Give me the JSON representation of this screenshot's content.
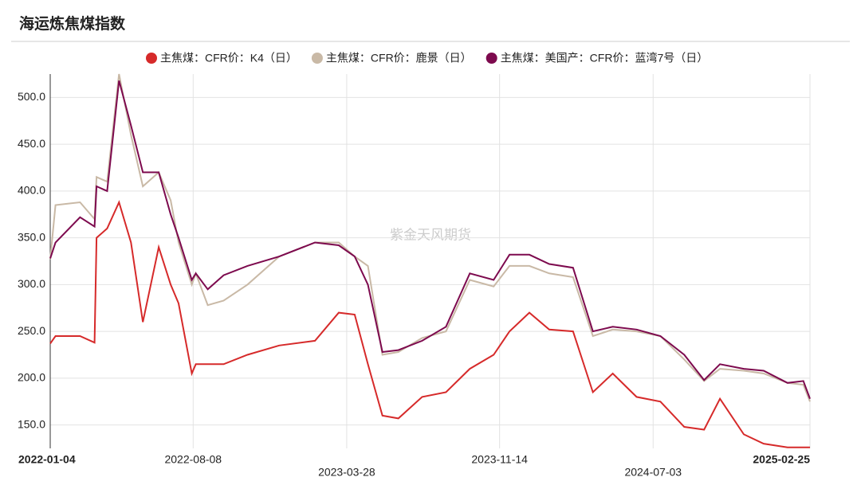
{
  "chart_data": {
    "type": "line",
    "title": "海运炼焦煤指数",
    "watermark": "紫金天风期货",
    "x": [
      "2022-01-04",
      "2022-01-12",
      "2022-02-18",
      "2022-03-12",
      "2022-03-15",
      "2022-03-31",
      "2022-04-18",
      "2022-05-06",
      "2022-05-24",
      "2022-06-17",
      "2022-07-05",
      "2022-07-17",
      "2022-08-06",
      "2022-08-12",
      "2022-08-30",
      "2022-09-23",
      "2022-10-29",
      "2022-12-16",
      "2023-02-08",
      "2023-03-16",
      "2023-04-09",
      "2023-04-29",
      "2023-05-21",
      "2023-06-14",
      "2023-07-20",
      "2023-08-25",
      "2023-09-30",
      "2023-11-05",
      "2023-11-29",
      "2023-12-29",
      "2024-01-28",
      "2024-03-04",
      "2024-04-03",
      "2024-05-03",
      "2024-06-08",
      "2024-07-14",
      "2024-08-19",
      "2024-09-18",
      "2024-10-12",
      "2024-11-17",
      "2024-12-17",
      "2025-01-22",
      "2025-02-15",
      "2025-02-25"
    ],
    "series": [
      {
        "name": "主焦煤：CFR价：K4（日）",
        "color": "#d62a2a",
        "values": [
          237,
          245,
          245,
          238,
          350,
          360,
          388,
          345,
          260,
          340,
          300,
          280,
          205,
          215,
          215,
          215,
          225,
          235,
          240,
          270,
          268,
          215,
          160,
          157,
          180,
          185,
          210,
          225,
          250,
          270,
          252,
          250,
          185,
          205,
          180,
          175,
          148,
          145,
          178,
          140,
          130,
          126,
          126,
          126
        ]
      },
      {
        "name": "主焦煤：CFR价：鹿景（日）",
        "color": "#c9b9a6",
        "values": [
          327,
          385,
          388,
          370,
          415,
          410,
          525,
          460,
          405,
          420,
          390,
          345,
          300,
          312,
          278,
          283,
          300,
          330,
          345,
          345,
          330,
          320,
          225,
          228,
          243,
          250,
          305,
          298,
          320,
          320,
          312,
          308,
          245,
          252,
          250,
          245,
          220,
          197,
          210,
          208,
          205,
          195,
          193,
          175
        ]
      },
      {
        "name": "主焦煤：美国产：CFR价：蓝湾7号（日）",
        "color": "#7d0a4e",
        "values": [
          328,
          345,
          372,
          362,
          405,
          400,
          518,
          470,
          420,
          420,
          375,
          350,
          305,
          312,
          295,
          310,
          320,
          330,
          345,
          342,
          330,
          300,
          228,
          230,
          240,
          255,
          312,
          305,
          332,
          332,
          322,
          318,
          250,
          255,
          252,
          245,
          225,
          198,
          215,
          210,
          208,
          195,
          197,
          178
        ]
      }
    ],
    "ylim": [
      125,
      525
    ],
    "yticks": [
      {
        "value": 150,
        "label": "150.0"
      },
      {
        "value": 200,
        "label": "200.0"
      },
      {
        "value": 250,
        "label": "250.0"
      },
      {
        "value": 300,
        "label": "300.0"
      },
      {
        "value": 350,
        "label": "350.0"
      },
      {
        "value": 400,
        "label": "400.0"
      },
      {
        "value": 450,
        "label": "450.0"
      },
      {
        "value": 500,
        "label": "500.0"
      }
    ],
    "xticks": [
      "2022-01-04",
      "2022-08-08",
      "2023-03-28",
      "2023-11-14",
      "2024-07-03",
      "2025-02-25"
    ],
    "grid": true
  }
}
